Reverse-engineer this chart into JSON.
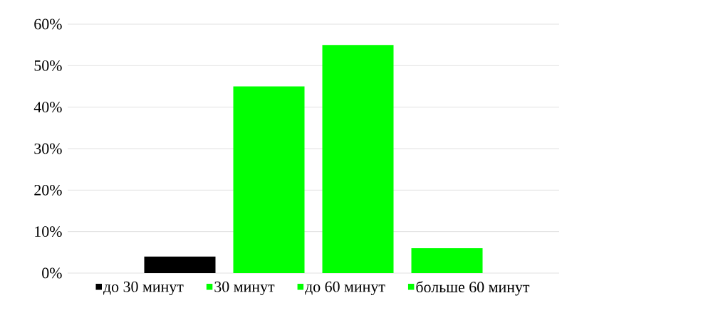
{
  "chart_data": {
    "type": "bar",
    "categories": [
      null,
      null,
      null,
      null
    ],
    "series": [
      {
        "name": "до 30 минут",
        "color": "#000000",
        "values": [
          4,
          null,
          null,
          null
        ]
      },
      {
        "name": "30 минут",
        "color": "#00ff00",
        "values": [
          null,
          45,
          null,
          null
        ]
      },
      {
        "name": "до 60 минут",
        "color": "#00ff00",
        "values": [
          null,
          null,
          55,
          null
        ]
      },
      {
        "name": "больше 60 минут",
        "color": "#00ff00",
        "values": [
          null,
          null,
          null,
          6
        ]
      }
    ],
    "ylim": [
      0,
      60
    ],
    "yticks": [
      {
        "value": 0,
        "label": "0%"
      },
      {
        "value": 10,
        "label": "10%"
      },
      {
        "value": 20,
        "label": "20%"
      },
      {
        "value": 30,
        "label": "30%"
      },
      {
        "value": 40,
        "label": "40%"
      },
      {
        "value": 50,
        "label": "50%"
      },
      {
        "value": 60,
        "label": "60%"
      }
    ],
    "grid": "y",
    "legend": "bottom"
  }
}
